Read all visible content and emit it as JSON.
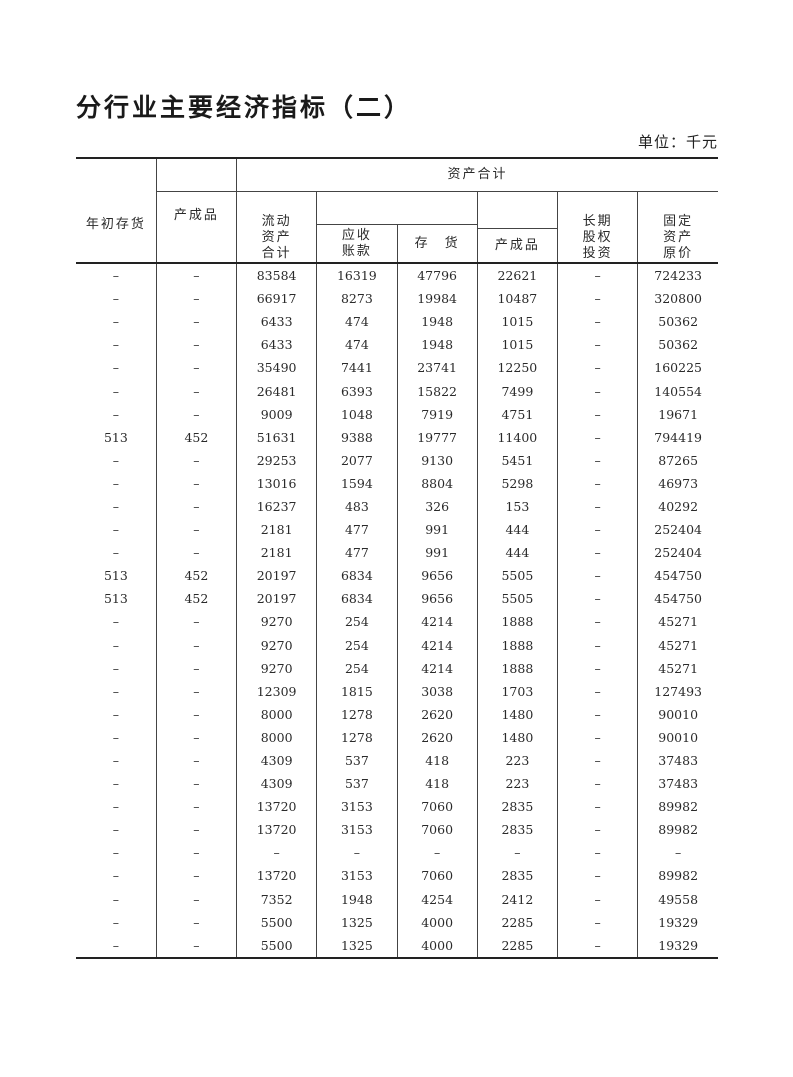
{
  "title": "分行业主要经济指标（二）",
  "unit": "单位：千元",
  "header": {
    "col_begin_inventory": "年初存货",
    "col_finished_products": "产成品",
    "group_total_assets": "资产合计",
    "col_current_assets": "流动资产合计",
    "col_receivables": "应收账款",
    "col_inventory": "存　货",
    "col_inv_finished": "产成品",
    "col_long_term_equity": "长期股权投资",
    "col_fixed_assets": "固定资产原价"
  },
  "rows": [
    [
      "–",
      "–",
      "83584",
      "16319",
      "47796",
      "22621",
      "–",
      "724233"
    ],
    [
      "–",
      "–",
      "66917",
      "8273",
      "19984",
      "10487",
      "–",
      "320800"
    ],
    [
      "–",
      "–",
      "6433",
      "474",
      "1948",
      "1015",
      "–",
      "50362"
    ],
    [
      "–",
      "–",
      "6433",
      "474",
      "1948",
      "1015",
      "–",
      "50362"
    ],
    [
      "–",
      "–",
      "35490",
      "7441",
      "23741",
      "12250",
      "–",
      "160225"
    ],
    [
      "–",
      "–",
      "26481",
      "6393",
      "15822",
      "7499",
      "–",
      "140554"
    ],
    [
      "–",
      "–",
      "9009",
      "1048",
      "7919",
      "4751",
      "–",
      "19671"
    ],
    [
      "513",
      "452",
      "51631",
      "9388",
      "19777",
      "11400",
      "–",
      "794419"
    ],
    [
      "–",
      "–",
      "29253",
      "2077",
      "9130",
      "5451",
      "–",
      "87265"
    ],
    [
      "–",
      "–",
      "13016",
      "1594",
      "8804",
      "5298",
      "–",
      "46973"
    ],
    [
      "–",
      "–",
      "16237",
      "483",
      "326",
      "153",
      "–",
      "40292"
    ],
    [
      "–",
      "–",
      "2181",
      "477",
      "991",
      "444",
      "–",
      "252404"
    ],
    [
      "–",
      "–",
      "2181",
      "477",
      "991",
      "444",
      "–",
      "252404"
    ],
    [
      "513",
      "452",
      "20197",
      "6834",
      "9656",
      "5505",
      "–",
      "454750"
    ],
    [
      "513",
      "452",
      "20197",
      "6834",
      "9656",
      "5505",
      "–",
      "454750"
    ],
    [
      "–",
      "–",
      "9270",
      "254",
      "4214",
      "1888",
      "–",
      "45271"
    ],
    [
      "–",
      "–",
      "9270",
      "254",
      "4214",
      "1888",
      "–",
      "45271"
    ],
    [
      "–",
      "–",
      "9270",
      "254",
      "4214",
      "1888",
      "–",
      "45271"
    ],
    [
      "–",
      "–",
      "12309",
      "1815",
      "3038",
      "1703",
      "–",
      "127493"
    ],
    [
      "–",
      "–",
      "8000",
      "1278",
      "2620",
      "1480",
      "–",
      "90010"
    ],
    [
      "–",
      "–",
      "8000",
      "1278",
      "2620",
      "1480",
      "–",
      "90010"
    ],
    [
      "–",
      "–",
      "4309",
      "537",
      "418",
      "223",
      "–",
      "37483"
    ],
    [
      "–",
      "–",
      "4309",
      "537",
      "418",
      "223",
      "–",
      "37483"
    ],
    [
      "–",
      "–",
      "13720",
      "3153",
      "7060",
      "2835",
      "–",
      "89982"
    ],
    [
      "–",
      "–",
      "13720",
      "3153",
      "7060",
      "2835",
      "–",
      "89982"
    ],
    [
      "–",
      "–",
      "–",
      "–",
      "–",
      "–",
      "–",
      "–"
    ],
    [
      "–",
      "–",
      "13720",
      "3153",
      "7060",
      "2835",
      "–",
      "89982"
    ],
    [
      "–",
      "–",
      "7352",
      "1948",
      "4254",
      "2412",
      "–",
      "49558"
    ],
    [
      "–",
      "–",
      "5500",
      "1325",
      "4000",
      "2285",
      "–",
      "19329"
    ],
    [
      "–",
      "–",
      "5500",
      "1325",
      "4000",
      "2285",
      "–",
      "19329"
    ]
  ]
}
